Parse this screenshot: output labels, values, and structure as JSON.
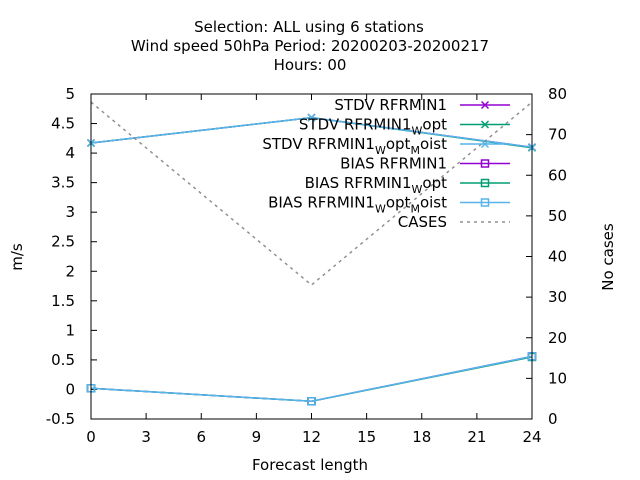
{
  "chart_data": {
    "type": "line",
    "title": {
      "line1": "Selection: ALL using     6 stations",
      "line2": "Wind speed 50hPa   Period: 20200203-20200217",
      "line3": "Hours:  00"
    },
    "xlabel": "Forecast length",
    "ylabel": "m/s",
    "y2label": "No cases",
    "xlim": [
      0,
      24
    ],
    "ylim": [
      -0.5,
      5
    ],
    "y2lim": [
      0,
      80
    ],
    "xticks": [
      "0",
      "3",
      "6",
      "9",
      "12",
      "15",
      "18",
      "21",
      "24"
    ],
    "yticks": [
      "-0.5",
      "0",
      "0.5",
      "1",
      "1.5",
      "2",
      "2.5",
      "3",
      "3.5",
      "4",
      "4.5",
      "5"
    ],
    "y2ticks": [
      "0",
      "10",
      "20",
      "30",
      "40",
      "50",
      "60",
      "70",
      "80"
    ],
    "grid": false,
    "legend_position": "top-right",
    "x": [
      0,
      12,
      24
    ],
    "series": [
      {
        "name": "STDV RFRMIN1",
        "color": "#9400d3",
        "marker": "x",
        "axis": "left",
        "values": [
          4.17,
          4.6,
          4.1
        ]
      },
      {
        "name": "STDV RFRMIN1_W_opt",
        "color": "#009e73",
        "marker": "x",
        "axis": "left",
        "values": [
          4.17,
          4.6,
          4.09
        ]
      },
      {
        "name": "STDV RFRMIN1_W_opt_M_oist",
        "color": "#56b4e9",
        "marker": "x",
        "axis": "left",
        "values": [
          4.17,
          4.6,
          4.1
        ]
      },
      {
        "name": "BIAS RFRMIN1",
        "color": "#9400d3",
        "marker": "square",
        "axis": "left",
        "values": [
          0.02,
          -0.2,
          0.56
        ]
      },
      {
        "name": "BIAS RFRMIN1_W_opt",
        "color": "#009e73",
        "marker": "square",
        "axis": "left",
        "values": [
          0.02,
          -0.2,
          0.55
        ]
      },
      {
        "name": "BIAS RFRMIN1_W_opt_M_oist",
        "color": "#56b4e9",
        "marker": "square",
        "axis": "left",
        "values": [
          0.02,
          -0.2,
          0.56
        ]
      },
      {
        "name": "CASES",
        "color": "#909090",
        "marker": "none",
        "dashed": true,
        "axis": "right",
        "values": [
          78,
          33,
          78
        ]
      }
    ],
    "legend": [
      {
        "main": "STDV RFRMIN1",
        "sub1": "",
        "mid": "",
        "sub2": "",
        "tail": ""
      },
      {
        "main": "STDV RFRMIN1",
        "sub1": "W",
        "mid": "opt",
        "sub2": "",
        "tail": ""
      },
      {
        "main": "STDV RFRMIN1",
        "sub1": "W",
        "mid": "opt",
        "sub2": "M",
        "tail": "oist"
      },
      {
        "main": "BIAS RFRMIN1",
        "sub1": "",
        "mid": "",
        "sub2": "",
        "tail": ""
      },
      {
        "main": "BIAS RFRMIN1",
        "sub1": "W",
        "mid": "opt",
        "sub2": "",
        "tail": ""
      },
      {
        "main": "BIAS RFRMIN1",
        "sub1": "W",
        "mid": "opt",
        "sub2": "M",
        "tail": "oist"
      },
      {
        "main": "CASES",
        "sub1": "",
        "mid": "",
        "sub2": "",
        "tail": ""
      }
    ]
  }
}
